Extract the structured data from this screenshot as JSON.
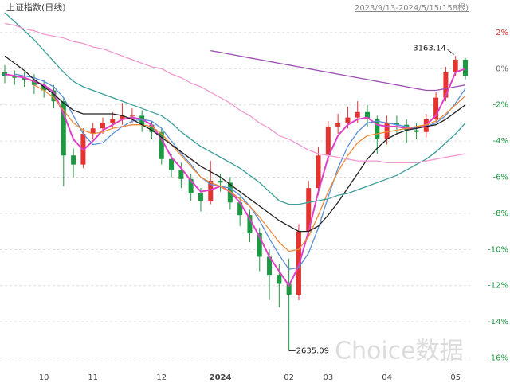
{
  "chart_data": {
    "type": "candlestick",
    "title": "上证指数(日线)",
    "subtitle": "2023/9/13-2024/5/15(158根)",
    "annotations": [
      "3163.14",
      "2635.09"
    ],
    "watermark": "Choice数据",
    "categories": [
      null,
      null,
      null,
      null,
      "10",
      null,
      null,
      null,
      null,
      "11",
      null,
      null,
      null,
      null,
      null,
      null,
      "12",
      null,
      null,
      null,
      null,
      null,
      "2024",
      null,
      null,
      null,
      null,
      null,
      null,
      "02",
      null,
      null,
      null,
      "03",
      null,
      null,
      null,
      null,
      null,
      "04",
      null,
      null,
      null,
      null,
      null,
      null,
      "05",
      null
    ],
    "open": [
      -0.2,
      -0.4,
      -0.5,
      -0.6,
      -0.9,
      -1.2,
      -1.8,
      -4.8,
      -5.3,
      -3.6,
      -3.3,
      -3.0,
      -2.8,
      -2.6,
      -2.6,
      -3.1,
      -3.5,
      -5.0,
      -5.6,
      -6.1,
      -6.9,
      -7.3,
      -6.2,
      -6.3,
      -7.4,
      -8.1,
      -9.1,
      -10.4,
      -11.4,
      -11.9,
      -12.5,
      -9.0,
      -6.6,
      -4.8,
      -3.2,
      -3.0,
      -2.7,
      -2.4,
      -2.8,
      -3.9,
      -3.0,
      -3.1,
      -3.4,
      -3.5,
      -2.8,
      -1.6,
      -0.2,
      0.5
    ],
    "close": [
      -0.4,
      -0.5,
      -0.6,
      -0.9,
      -1.2,
      -1.8,
      -4.8,
      -5.3,
      -3.6,
      -3.3,
      -3.0,
      -2.8,
      -2.6,
      -2.6,
      -3.1,
      -3.5,
      -5.0,
      -5.6,
      -6.1,
      -6.9,
      -7.3,
      -6.2,
      -6.3,
      -7.4,
      -8.1,
      -9.1,
      -10.4,
      -11.4,
      -11.9,
      -12.5,
      -9.0,
      -6.6,
      -4.8,
      -3.2,
      -3.0,
      -2.7,
      -2.4,
      -2.8,
      -3.9,
      -3.0,
      -3.1,
      -3.4,
      -3.5,
      -2.8,
      -1.6,
      -0.2,
      0.5,
      -0.4
    ],
    "high": [
      0.2,
      -0.1,
      -0.2,
      -0.3,
      -0.6,
      -0.9,
      -1.6,
      -4.4,
      -3.3,
      -3.0,
      -2.7,
      -2.4,
      -1.9,
      -2.2,
      -2.3,
      -2.9,
      -3.3,
      -4.7,
      -5.2,
      -5.8,
      -6.6,
      -5.1,
      -5.8,
      -6.0,
      -7.1,
      -7.8,
      -8.8,
      -10.0,
      -10.8,
      -10.5,
      -8.6,
      -6.2,
      -4.3,
      -2.9,
      -2.5,
      -2.1,
      -1.8,
      -2.0,
      -2.6,
      -2.6,
      -2.6,
      -2.8,
      -3.0,
      -2.5,
      -1.3,
      0.1,
      0.7,
      0.6
    ],
    "low": [
      -0.8,
      -0.9,
      -1.0,
      -1.4,
      -1.6,
      -2.2,
      -6.5,
      -6.0,
      -5.5,
      -3.9,
      -3.6,
      -3.3,
      -3.1,
      -3.0,
      -3.5,
      -3.9,
      -5.3,
      -6.0,
      -6.6,
      -7.3,
      -7.9,
      -7.5,
      -6.8,
      -7.8,
      -8.7,
      -9.6,
      -11.2,
      -12.8,
      -13.2,
      -15.6,
      -12.8,
      -9.3,
      -7.0,
      -5.1,
      -3.6,
      -3.3,
      -3.0,
      -3.2,
      -4.7,
      -4.2,
      -3.6,
      -4.1,
      -3.9,
      -3.8,
      -3.0,
      -1.8,
      -0.4,
      -0.6
    ],
    "up_color": "#e5332f",
    "down_color": "#1a9a41",
    "series": [
      {
        "color": "#e040c8",
        "values": [
          -0.3,
          -0.4,
          -0.5,
          -0.7,
          -0.9,
          -1.3,
          -2.5,
          -3.9,
          -4.5,
          -4.0,
          -3.4,
          -3.1,
          -2.8,
          -2.7,
          -2.8,
          -3.1,
          -3.9,
          -4.9,
          -5.5,
          -6.2,
          -6.8,
          -6.7,
          -6.5,
          -6.8,
          -7.4,
          -8.3,
          -9.3,
          -10.4,
          -11.2,
          -12.0,
          -10.9,
          -9.0,
          -6.8,
          -4.9,
          -3.7,
          -3.1,
          -2.8,
          -2.7,
          -3.1,
          -3.2,
          -3.2,
          -3.3,
          -3.3,
          -3.1,
          -2.6,
          -1.5,
          -0.2,
          0.0
        ]
      },
      {
        "color": "#5b8fd6",
        "values": [
          null,
          -0.3,
          -0.4,
          -0.5,
          -0.7,
          -1.0,
          -1.6,
          -2.6,
          -3.6,
          -4.2,
          -4.1,
          -3.6,
          -3.2,
          -2.9,
          -2.8,
          -2.9,
          -3.3,
          -4.0,
          -4.7,
          -5.3,
          -6.0,
          -6.4,
          -6.5,
          -6.6,
          -7.0,
          -7.6,
          -8.4,
          -9.4,
          -10.3,
          -11.1,
          -11.0,
          -10.2,
          -8.8,
          -7.1,
          -5.5,
          -4.3,
          -3.5,
          -3.0,
          -2.9,
          -3.0,
          -3.1,
          -3.2,
          -3.3,
          -3.2,
          -3.0,
          -2.6,
          -1.9,
          -1.1
        ]
      },
      {
        "color": "#ee8a3a",
        "values": [
          null,
          null,
          null,
          -0.9,
          -1.2,
          -1.6,
          -2.3,
          -3.0,
          -3.4,
          -3.6,
          -3.5,
          -3.3,
          -3.2,
          -3.1,
          -3.1,
          -3.2,
          -3.6,
          -4.2,
          -4.8,
          -5.4,
          -6.0,
          -6.3,
          -6.5,
          -6.8,
          -7.2,
          -7.6,
          -8.2,
          -8.9,
          -9.6,
          -10.1,
          -10.0,
          -9.3,
          -8.1,
          -6.8,
          -5.7,
          -4.8,
          -4.1,
          -3.7,
          -3.6,
          -3.5,
          -3.4,
          -3.3,
          -3.2,
          -3.1,
          -2.9,
          -2.5,
          -2.0,
          -1.5
        ]
      },
      {
        "color": "#222222",
        "values": [
          0.7,
          0.3,
          -0.1,
          -0.6,
          -1.0,
          -1.4,
          -1.9,
          -2.3,
          -2.5,
          -2.5,
          -2.5,
          -2.5,
          -2.6,
          -2.8,
          -3.1,
          -3.4,
          -3.8,
          -4.2,
          -4.6,
          -5.0,
          -5.4,
          -5.7,
          -6.0,
          -6.4,
          -6.8,
          -7.2,
          -7.6,
          -8.0,
          -8.4,
          -8.7,
          -9.0,
          -9.0,
          -8.7,
          -8.1,
          -7.4,
          -6.6,
          -5.8,
          -5.0,
          -4.4,
          -3.9,
          -3.6,
          -3.4,
          -3.3,
          -3.2,
          -3.1,
          -2.8,
          -2.4,
          -2.0
        ]
      },
      {
        "color": "#3a9e9a",
        "values": [
          3.1,
          2.6,
          2.1,
          1.6,
          1.0,
          0.4,
          -0.2,
          -0.7,
          -1.0,
          -1.2,
          -1.4,
          -1.6,
          -1.8,
          -2.0,
          -2.2,
          -2.4,
          -2.6,
          -3.0,
          -3.5,
          -3.9,
          -4.3,
          -4.6,
          -4.9,
          -5.2,
          -5.5,
          -5.9,
          -6.3,
          -6.8,
          -7.3,
          -7.5,
          -7.5,
          -7.4,
          -7.3,
          -7.2,
          -7.0,
          -6.9,
          -6.7,
          -6.5,
          -6.3,
          -6.1,
          -5.9,
          -5.6,
          -5.3,
          -5.0,
          -4.6,
          -4.1,
          -3.6,
          -3.0
        ]
      },
      {
        "color": "#ee9ad0",
        "values": [
          2.5,
          2.4,
          2.2,
          2.1,
          1.9,
          1.8,
          1.7,
          1.5,
          1.4,
          1.2,
          1.1,
          0.9,
          0.7,
          0.5,
          0.3,
          0.1,
          0.0,
          -0.3,
          -0.5,
          -0.8,
          -1.0,
          -1.3,
          -1.6,
          -1.9,
          -2.3,
          -2.6,
          -3.0,
          -3.3,
          -3.7,
          -3.9,
          -4.2,
          -4.5,
          -4.7,
          -4.8,
          -4.9,
          -5.0,
          -5.1,
          -5.1,
          -5.1,
          -5.2,
          -5.2,
          -5.2,
          -5.2,
          -5.1,
          -5.0,
          -4.9,
          -4.8,
          -4.7
        ]
      },
      {
        "color": "#9b4fb0",
        "values": [
          null,
          null,
          null,
          null,
          null,
          null,
          null,
          null,
          null,
          null,
          null,
          null,
          null,
          null,
          null,
          null,
          null,
          null,
          null,
          null,
          null,
          1.0,
          0.9,
          0.8,
          0.7,
          0.6,
          0.5,
          0.4,
          0.3,
          0.2,
          0.1,
          0.0,
          -0.1,
          -0.2,
          -0.3,
          -0.4,
          -0.5,
          -0.6,
          -0.7,
          -0.8,
          -0.9,
          -1.0,
          -1.1,
          -1.2,
          -1.2,
          -1.1,
          -1.0,
          -0.9
        ]
      }
    ],
    "ylim": [
      -16.9,
      3.8
    ],
    "yticks": [
      {
        "value": 2,
        "label": "2%"
      },
      {
        "value": 0,
        "label": "0%"
      },
      {
        "value": -2,
        "label": "-2%"
      },
      {
        "value": -4,
        "label": "-4%"
      },
      {
        "value": -6,
        "label": "-6%"
      },
      {
        "value": -8,
        "label": "-8%"
      },
      {
        "value": -10,
        "label": "-10%"
      },
      {
        "value": -12,
        "label": "-12%"
      },
      {
        "value": -14,
        "label": "-14%"
      },
      {
        "value": -16,
        "label": "-16%"
      }
    ],
    "grid": true
  }
}
